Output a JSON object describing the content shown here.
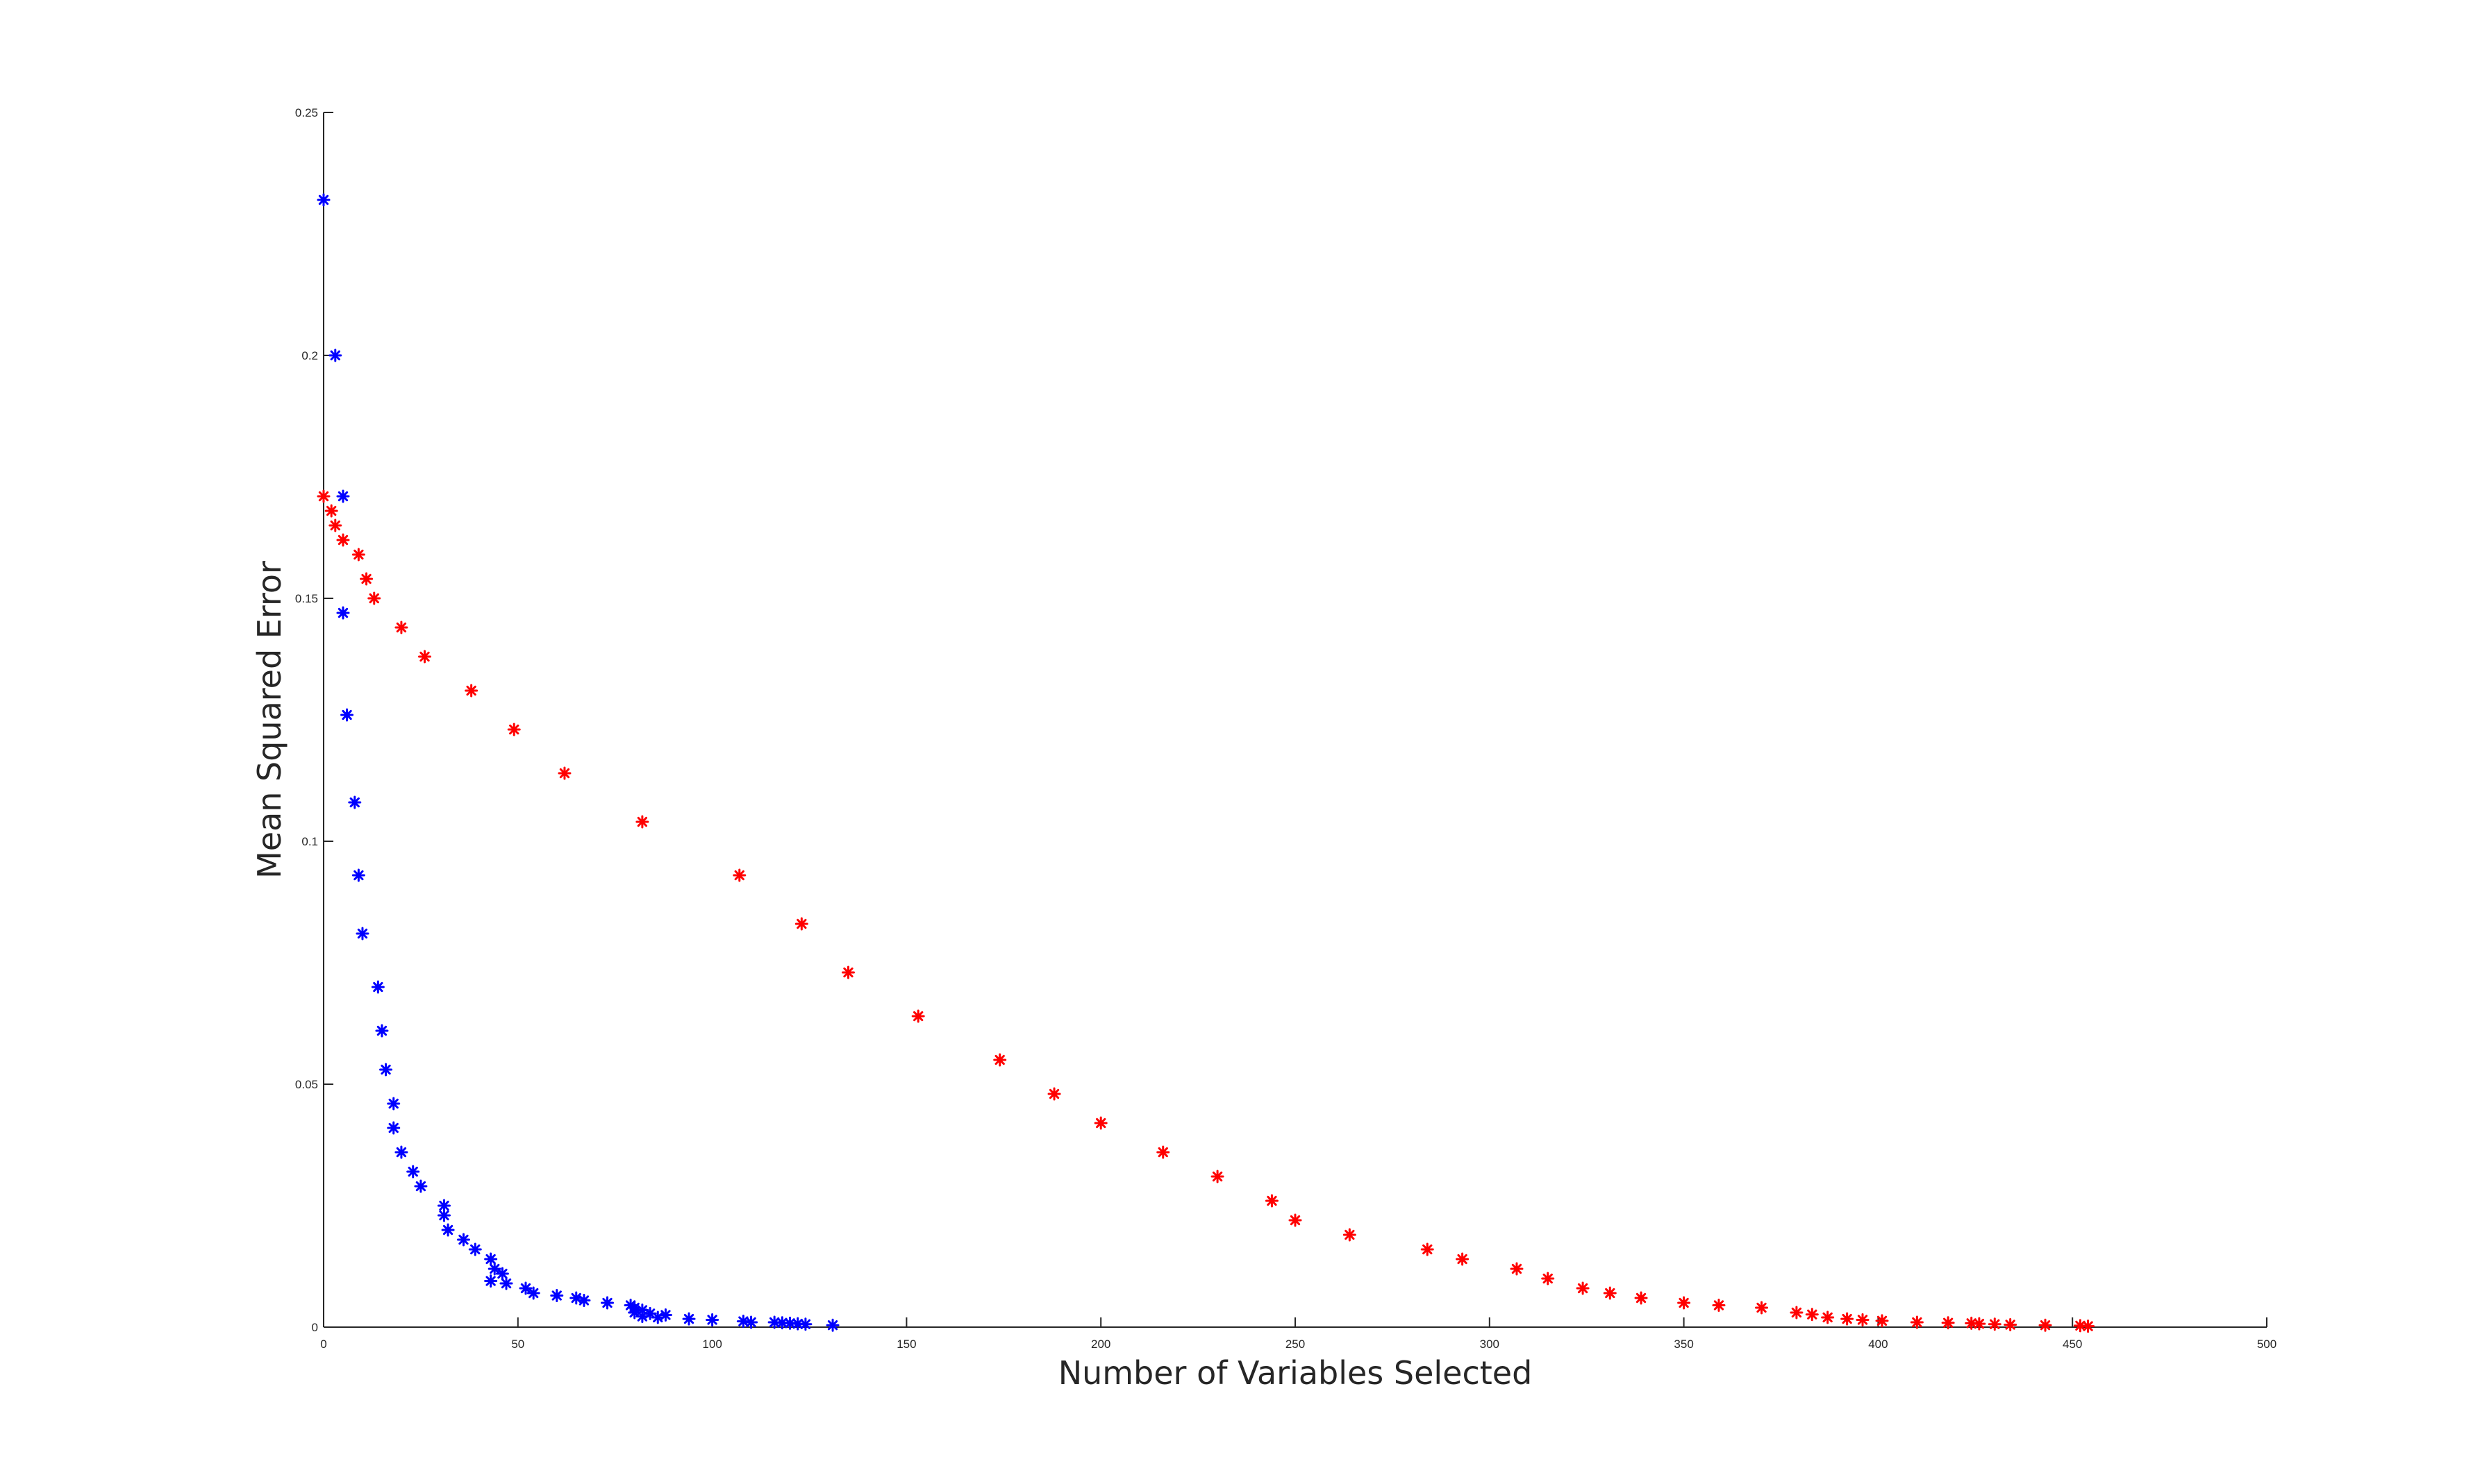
{
  "chart_data": {
    "type": "scatter",
    "title": "",
    "xlabel": "Number of Variables Selected",
    "ylabel": "Mean Squared Error",
    "xlim": [
      0,
      500
    ],
    "ylim": [
      0,
      0.25
    ],
    "xticks": [
      0,
      50,
      100,
      150,
      200,
      250,
      300,
      350,
      400,
      450,
      500
    ],
    "xtick_labels": [
      "0",
      "50",
      "100",
      "150",
      "200",
      "250",
      "300",
      "350",
      "400",
      "450",
      "500"
    ],
    "yticks": [
      0,
      0.05,
      0.1,
      0.15,
      0.2,
      0.25
    ],
    "ytick_labels": [
      "0",
      "0.05",
      "0.1",
      "0.15",
      "0.2",
      "0.25"
    ],
    "grid": false,
    "legend": "none",
    "marker": "asterisk",
    "series": [
      {
        "color": "#0000ff",
        "points": [
          [
            0,
            0.232
          ],
          [
            3,
            0.2
          ],
          [
            5,
            0.171
          ],
          [
            5,
            0.147
          ],
          [
            6,
            0.126
          ],
          [
            8,
            0.108
          ],
          [
            9,
            0.093
          ],
          [
            10,
            0.081
          ],
          [
            14,
            0.07
          ],
          [
            15,
            0.061
          ],
          [
            16,
            0.053
          ],
          [
            18,
            0.046
          ],
          [
            18,
            0.041
          ],
          [
            20,
            0.036
          ],
          [
            23,
            0.032
          ],
          [
            25,
            0.029
          ],
          [
            31,
            0.025
          ],
          [
            31,
            0.023
          ],
          [
            32,
            0.02
          ],
          [
            36,
            0.018
          ],
          [
            39,
            0.016
          ],
          [
            43,
            0.014
          ],
          [
            44,
            0.012
          ],
          [
            46,
            0.011
          ],
          [
            47,
            0.009
          ],
          [
            43,
            0.0095
          ],
          [
            52,
            0.008
          ],
          [
            54,
            0.007
          ],
          [
            60,
            0.0065
          ],
          [
            65,
            0.006
          ],
          [
            67,
            0.0055
          ],
          [
            73,
            0.005
          ],
          [
            79,
            0.0045
          ],
          [
            80,
            0.004
          ],
          [
            82,
            0.0035
          ],
          [
            80,
            0.003
          ],
          [
            84,
            0.0028
          ],
          [
            88,
            0.0025
          ],
          [
            82,
            0.0022
          ],
          [
            86,
            0.002
          ],
          [
            94,
            0.0017
          ],
          [
            100,
            0.0015
          ],
          [
            108,
            0.0012
          ],
          [
            110,
            0.001
          ],
          [
            116,
            0.001
          ],
          [
            118,
            0.0009
          ],
          [
            120,
            0.0008
          ],
          [
            122,
            0.0007
          ],
          [
            124,
            0.0006
          ],
          [
            131,
            0.0004
          ]
        ]
      },
      {
        "color": "#ff0000",
        "points": [
          [
            0,
            0.171
          ],
          [
            2,
            0.168
          ],
          [
            3,
            0.165
          ],
          [
            5,
            0.162
          ],
          [
            9,
            0.159
          ],
          [
            11,
            0.154
          ],
          [
            13,
            0.15
          ],
          [
            20,
            0.144
          ],
          [
            26,
            0.138
          ],
          [
            38,
            0.131
          ],
          [
            49,
            0.123
          ],
          [
            62,
            0.114
          ],
          [
            82,
            0.104
          ],
          [
            107,
            0.093
          ],
          [
            123,
            0.083
          ],
          [
            135,
            0.073
          ],
          [
            153,
            0.064
          ],
          [
            174,
            0.055
          ],
          [
            188,
            0.048
          ],
          [
            200,
            0.042
          ],
          [
            216,
            0.036
          ],
          [
            230,
            0.031
          ],
          [
            244,
            0.026
          ],
          [
            250,
            0.022
          ],
          [
            264,
            0.019
          ],
          [
            284,
            0.016
          ],
          [
            293,
            0.014
          ],
          [
            307,
            0.012
          ],
          [
            315,
            0.01
          ],
          [
            324,
            0.008
          ],
          [
            331,
            0.007
          ],
          [
            339,
            0.006
          ],
          [
            350,
            0.005
          ],
          [
            359,
            0.0045
          ],
          [
            370,
            0.004
          ],
          [
            379,
            0.003
          ],
          [
            383,
            0.0026
          ],
          [
            387,
            0.002
          ],
          [
            392,
            0.0017
          ],
          [
            396,
            0.0015
          ],
          [
            401,
            0.0013
          ],
          [
            410,
            0.001
          ],
          [
            418,
            0.0009
          ],
          [
            424,
            0.0008
          ],
          [
            426,
            0.0007
          ],
          [
            430,
            0.0006
          ],
          [
            434,
            0.0005
          ],
          [
            443,
            0.0004
          ],
          [
            452,
            0.0003
          ],
          [
            454,
            0.0002
          ]
        ]
      }
    ]
  }
}
